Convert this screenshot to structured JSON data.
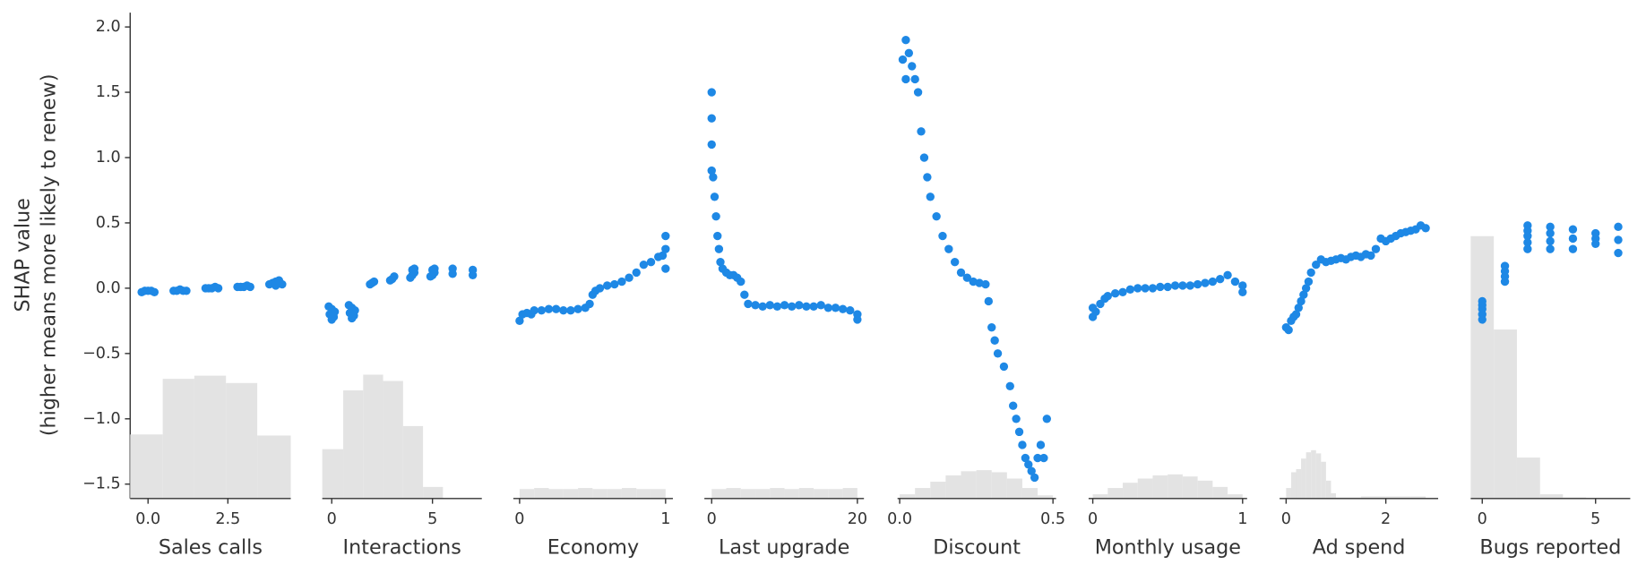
{
  "chart_data": [
    {
      "type": "scatter",
      "xlabel": "Sales calls",
      "ylabel": [
        "SHAP value",
        "(higher means more likely to renew)"
      ],
      "color": "#1e88e5",
      "hist_color": "#e3e3e3",
      "ylim": [
        -1.61,
        2.11
      ],
      "yticks": [
        {
          "value": -1.5,
          "label": "−1.5"
        },
        {
          "value": -1,
          "label": "−1.0"
        },
        {
          "value": -0.5,
          "label": "−0.5"
        },
        {
          "value": 0,
          "label": "0.0"
        },
        0.5,
        {
          "value": 1,
          "label": "1.0"
        },
        1.5,
        {
          "value": 2,
          "label": "2.0"
        }
      ],
      "xlim": [
        -0.56,
        4.47
      ],
      "xticks": [
        {
          "value": 0,
          "label": "0.0"
        },
        2.5
      ],
      "x": [
        -0.2,
        -0.1,
        0,
        0.1,
        0.2,
        0.8,
        0.9,
        1,
        1.1,
        1.2,
        1.8,
        1.9,
        2,
        2.1,
        2.2,
        2.8,
        2.9,
        3,
        3.1,
        3.2,
        3.8,
        3.9,
        4,
        4.1,
        4.2,
        4,
        4.1
      ],
      "values": [
        -0.03,
        -0.02,
        -0.02,
        -0.02,
        -0.03,
        -0.02,
        -0.02,
        -0.01,
        -0.02,
        -0.02,
        0,
        0,
        0,
        0.01,
        0,
        0.01,
        0.01,
        0.01,
        0.02,
        0.01,
        0.03,
        0.04,
        0.05,
        0.04,
        0.03,
        0.02,
        0.06
      ],
      "hist": {
        "bins": [
          -0.56,
          0.46,
          1.45,
          2.44,
          3.42,
          4.47
        ],
        "counts": [
          61,
          114,
          117,
          110,
          60
        ]
      }
    },
    {
      "type": "scatter",
      "xlabel": "Interactions",
      "color": "#1e88e5",
      "hist_color": "#e3e3e3",
      "xlim": [
        -0.47,
        7.45
      ],
      "xticks": [
        0,
        5
      ],
      "x": [
        -0.15,
        0,
        0.15,
        -0.1,
        0.1,
        0,
        0.85,
        1,
        1.15,
        0.9,
        1.1,
        1,
        1.9,
        2,
        2.1,
        2.9,
        3,
        3.1,
        3.9,
        4,
        4.1,
        4,
        4.1,
        4.9,
        5,
        5.1,
        5,
        5.1,
        6,
        6,
        7,
        7
      ],
      "values": [
        -0.14,
        -0.16,
        -0.18,
        -0.2,
        -0.22,
        -0.24,
        -0.13,
        -0.15,
        -0.17,
        -0.19,
        -0.21,
        -0.23,
        0.03,
        0.04,
        0.05,
        0.06,
        0.07,
        0.09,
        0.08,
        0.1,
        0.12,
        0.14,
        0.15,
        0.09,
        0.1,
        0.12,
        0.14,
        0.15,
        0.11,
        0.15,
        0.1,
        0.14
      ],
      "hist": {
        "bins": [
          -0.47,
          0.57,
          1.56,
          2.55,
          3.54,
          4.53,
          5.52
        ],
        "counts": [
          47,
          103,
          118,
          112,
          69,
          11
        ]
      }
    },
    {
      "type": "scatter",
      "xlabel": "Economy",
      "color": "#1e88e5",
      "hist_color": "#e3e3e3",
      "xlim": [
        -0.043,
        1.05
      ],
      "xticks": [
        0,
        1
      ],
      "x": [
        0,
        0.02,
        0.05,
        0.08,
        0.1,
        0.15,
        0.2,
        0.25,
        0.3,
        0.35,
        0.4,
        0.45,
        0.48,
        0.5,
        0.52,
        0.55,
        0.6,
        0.65,
        0.7,
        0.75,
        0.8,
        0.85,
        0.9,
        0.95,
        0.98,
        1,
        1,
        1
      ],
      "values": [
        -0.25,
        -0.2,
        -0.19,
        -0.2,
        -0.17,
        -0.17,
        -0.16,
        -0.16,
        -0.17,
        -0.17,
        -0.16,
        -0.15,
        -0.12,
        -0.05,
        -0.02,
        0,
        0.02,
        0.03,
        0.05,
        0.08,
        0.12,
        0.18,
        0.2,
        0.24,
        0.25,
        0.4,
        0.3,
        0.15
      ],
      "hist": {
        "bins": [
          0,
          0.1,
          0.2,
          0.3,
          0.4,
          0.5,
          0.6,
          0.7,
          0.8,
          0.9,
          1
        ],
        "counts": [
          9,
          10,
          9,
          9,
          10,
          9,
          9,
          10,
          9,
          9
        ]
      }
    },
    {
      "type": "scatter",
      "xlabel": "Last upgrade",
      "color": "#1e88e5",
      "hist_color": "#e3e3e3",
      "xlim": [
        -1.0,
        20.9
      ],
      "xticks": [
        0,
        20
      ],
      "x": [
        0,
        0,
        0,
        0,
        0.2,
        0.4,
        0.6,
        0.8,
        1,
        1.2,
        1.5,
        2,
        2.5,
        3,
        3.5,
        4,
        4.5,
        5,
        6,
        7,
        8,
        9,
        10,
        11,
        12,
        13,
        14,
        15,
        16,
        17,
        18,
        19,
        20,
        20
      ],
      "values": [
        1.5,
        1.3,
        1.1,
        0.9,
        0.85,
        0.7,
        0.55,
        0.4,
        0.3,
        0.2,
        0.15,
        0.12,
        0.1,
        0.1,
        0.08,
        0.05,
        -0.05,
        -0.12,
        -0.13,
        -0.14,
        -0.13,
        -0.14,
        -0.13,
        -0.14,
        -0.13,
        -0.14,
        -0.14,
        -0.13,
        -0.15,
        -0.15,
        -0.16,
        -0.17,
        -0.2,
        -0.24
      ],
      "hist": {
        "bins": [
          0,
          2,
          4,
          6,
          8,
          10,
          12,
          14,
          16,
          18,
          20
        ],
        "counts": [
          9,
          10,
          9,
          9,
          10,
          9,
          10,
          9,
          9,
          10
        ]
      }
    },
    {
      "type": "scatter",
      "xlabel": "Discount",
      "color": "#1e88e5",
      "hist_color": "#e3e3e3",
      "xlim": [
        -0.007,
        0.51
      ],
      "xticks": [
        {
          "value": 0,
          "label": "0.0"
        },
        0.5
      ],
      "x": [
        0.01,
        0.02,
        0.02,
        0.03,
        0.04,
        0.05,
        0.06,
        0.07,
        0.08,
        0.09,
        0.1,
        0.12,
        0.14,
        0.16,
        0.18,
        0.2,
        0.22,
        0.24,
        0.26,
        0.28,
        0.29,
        0.3,
        0.31,
        0.32,
        0.34,
        0.36,
        0.37,
        0.38,
        0.39,
        0.4,
        0.41,
        0.42,
        0.43,
        0.44,
        0.45,
        0.46,
        0.47,
        0.48
      ],
      "values": [
        1.75,
        1.9,
        1.6,
        1.8,
        1.7,
        1.6,
        1.5,
        1.2,
        1.0,
        0.85,
        0.7,
        0.55,
        0.4,
        0.3,
        0.2,
        0.12,
        0.08,
        0.05,
        0.04,
        0.03,
        -0.1,
        -0.3,
        -0.4,
        -0.5,
        -0.6,
        -0.75,
        -0.9,
        -1.0,
        -1.1,
        -1.2,
        -1.3,
        -1.35,
        -1.4,
        -1.45,
        -1.3,
        -1.2,
        -1.3,
        -1.0
      ],
      "hist": {
        "bins": [
          0,
          0.05,
          0.1,
          0.15,
          0.2,
          0.25,
          0.3,
          0.35,
          0.4,
          0.45,
          0.5
        ],
        "counts": [
          4,
          10,
          16,
          22,
          26,
          27,
          25,
          19,
          10,
          3
        ]
      }
    },
    {
      "type": "scatter",
      "xlabel": "Monthly usage",
      "color": "#1e88e5",
      "hist_color": "#e3e3e3",
      "xlim": [
        -0.028,
        1.03
      ],
      "xticks": [
        0,
        1
      ],
      "x": [
        0,
        0,
        0.02,
        0.05,
        0.08,
        0.1,
        0.15,
        0.2,
        0.25,
        0.3,
        0.35,
        0.4,
        0.45,
        0.5,
        0.55,
        0.6,
        0.65,
        0.7,
        0.75,
        0.8,
        0.85,
        0.9,
        0.95,
        1,
        1
      ],
      "values": [
        -0.22,
        -0.15,
        -0.18,
        -0.12,
        -0.08,
        -0.06,
        -0.04,
        -0.03,
        -0.01,
        0,
        0,
        0,
        0.01,
        0.01,
        0.02,
        0.02,
        0.02,
        0.03,
        0.04,
        0.05,
        0.07,
        0.1,
        0.05,
        0.02,
        -0.03
      ],
      "hist": {
        "bins": [
          0,
          0.1,
          0.2,
          0.3,
          0.4,
          0.5,
          0.6,
          0.7,
          0.8,
          0.9,
          1
        ],
        "counts": [
          4,
          10,
          15,
          19,
          22,
          23,
          21,
          17,
          11,
          4
        ]
      }
    },
    {
      "type": "scatter",
      "xlabel": "Ad spend",
      "color": "#1e88e5",
      "hist_color": "#e3e3e3",
      "xlim": [
        -0.13,
        3.05
      ],
      "xticks": [
        0,
        2
      ],
      "x": [
        0,
        0.05,
        0.1,
        0.15,
        0.2,
        0.25,
        0.3,
        0.35,
        0.4,
        0.45,
        0.5,
        0.6,
        0.7,
        0.8,
        0.9,
        1,
        1.1,
        1.2,
        1.3,
        1.4,
        1.5,
        1.6,
        1.7,
        1.8,
        1.9,
        2,
        2.1,
        2.2,
        2.3,
        2.4,
        2.5,
        2.6,
        2.7,
        2.8
      ],
      "values": [
        -0.3,
        -0.32,
        -0.25,
        -0.22,
        -0.2,
        -0.15,
        -0.1,
        -0.05,
        0,
        0.05,
        0.12,
        0.18,
        0.22,
        0.2,
        0.21,
        0.22,
        0.23,
        0.22,
        0.24,
        0.25,
        0.24,
        0.26,
        0.25,
        0.3,
        0.38,
        0.36,
        0.38,
        0.4,
        0.42,
        0.43,
        0.44,
        0.45,
        0.48,
        0.46
      ],
      "hist": {
        "bins": [
          0,
          0.1,
          0.2,
          0.3,
          0.4,
          0.5,
          0.6,
          0.7,
          0.8,
          0.9,
          1.0,
          1.5,
          2.0,
          2.5,
          2.8
        ],
        "counts": [
          10,
          25,
          28,
          38,
          44,
          46,
          43,
          35,
          17,
          5,
          1,
          2,
          2,
          2
        ]
      }
    },
    {
      "type": "scatter",
      "xlabel": "Bugs reported",
      "color": "#1e88e5",
      "hist_color": "#e3e3e3",
      "xlim": [
        -0.51,
        6.53
      ],
      "xticks": [
        0,
        5
      ],
      "x": [
        0,
        0,
        0,
        0,
        0,
        1,
        1,
        1,
        1,
        2,
        2,
        2,
        2,
        2,
        3,
        3,
        3,
        3,
        4,
        4,
        4,
        5,
        5,
        5,
        6,
        6,
        6
      ],
      "values": [
        -0.1,
        -0.13,
        -0.16,
        -0.2,
        -0.24,
        0.05,
        0.09,
        0.13,
        0.17,
        0.3,
        0.35,
        0.4,
        0.44,
        0.48,
        0.3,
        0.36,
        0.42,
        0.47,
        0.3,
        0.38,
        0.45,
        0.34,
        0.38,
        0.42,
        0.27,
        0.37,
        0.47
      ],
      "hist": {
        "bins": [
          -0.51,
          0.51,
          1.53,
          2.55,
          3.56,
          4.58
        ],
        "counts": [
          250,
          161,
          39,
          4,
          1
        ]
      }
    }
  ]
}
